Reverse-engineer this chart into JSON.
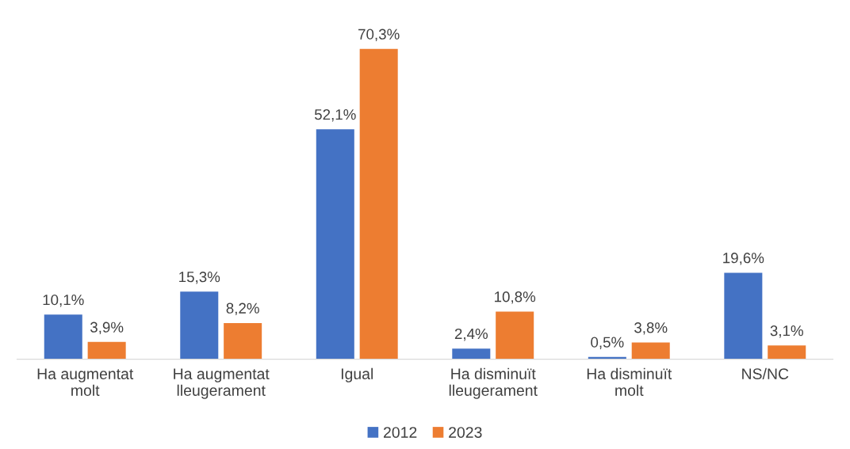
{
  "chart_data": {
    "type": "bar",
    "categories": [
      "Ha augmentat\nmolt",
      "Ha augmentat\nlleugerament",
      "Igual",
      "Ha disminuït\nlleugerament",
      "Ha disminuït\nmolt",
      "NS/NC"
    ],
    "series": [
      {
        "name": "2012",
        "color": "#4472c4",
        "values": [
          10.1,
          15.3,
          52.1,
          2.4,
          0.5,
          19.6
        ],
        "value_labels": [
          "10,1%",
          "15,3%",
          "52,1%",
          "2,4%",
          "0,5%",
          "19,6%"
        ]
      },
      {
        "name": "2023",
        "color": "#ed7d31",
        "values": [
          3.9,
          8.2,
          70.3,
          10.8,
          3.8,
          3.1
        ],
        "value_labels": [
          "3,9%",
          "8,2%",
          "70,3%",
          "10,8%",
          "3,8%",
          "3,1%"
        ]
      }
    ],
    "grid": false,
    "legend": "bottom",
    "tick_labels": "x"
  }
}
